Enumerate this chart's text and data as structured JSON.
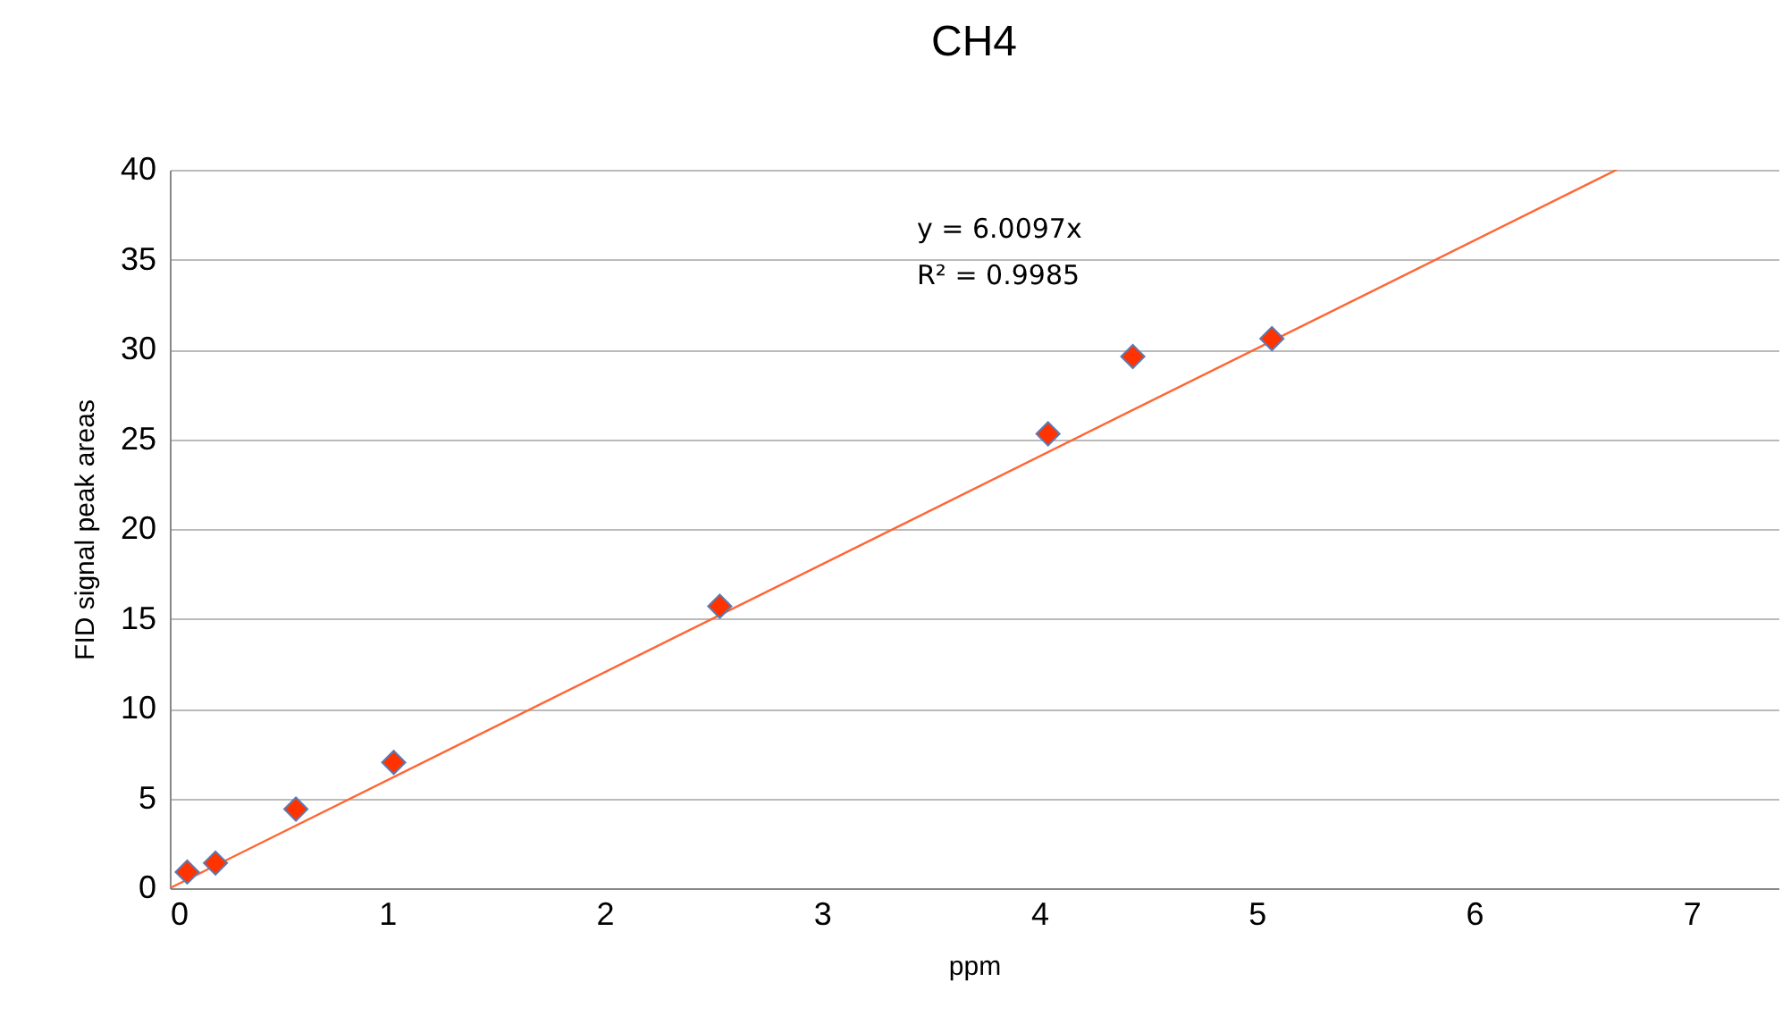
{
  "chart_data": {
    "type": "scatter",
    "title": "CH4",
    "xlabel": "ppm",
    "ylabel": "FID signal peak areas",
    "annotations": [
      "y = 6.0097x",
      "R² = 0.9985"
    ],
    "series": [
      {
        "color": "#ff3300",
        "marker": "diamond",
        "x": [
          0.08,
          0.21,
          0.58,
          1.03,
          2.53,
          4.04,
          4.43,
          5.07
        ],
        "values": [
          0.9,
          1.4,
          4.4,
          7.0,
          15.7,
          25.3,
          29.6,
          30.6
        ]
      },
      {
        "type": "line",
        "color": "#ff6633",
        "x": [
          0,
          6.656
        ],
        "values": [
          0,
          40
        ]
      }
    ],
    "xlim": [
      0,
      7.4
    ],
    "xticks": [
      0,
      1,
      2,
      3,
      4,
      5,
      6,
      7
    ],
    "ylim": [
      0,
      40
    ],
    "yticks": [
      0,
      5,
      10,
      15,
      20,
      25,
      30,
      35,
      40
    ],
    "grid": "y"
  }
}
